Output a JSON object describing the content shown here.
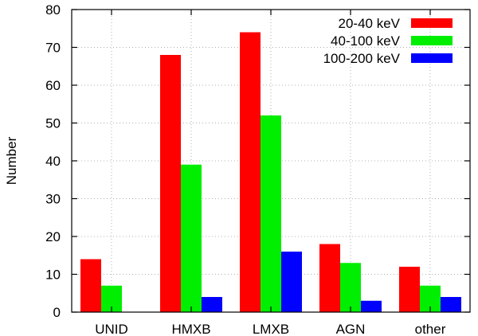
{
  "chart_data": {
    "type": "bar",
    "title": "",
    "xlabel": "",
    "ylabel": "Number",
    "ylim": [
      0,
      80
    ],
    "yticks": [
      0,
      10,
      20,
      30,
      40,
      50,
      60,
      70,
      80
    ],
    "grid": true,
    "legend_position": "top-right",
    "categories": [
      "UNID",
      "HMXB",
      "LMXB",
      "AGN",
      "other"
    ],
    "series": [
      {
        "name": "20-40 keV",
        "color": "#ff0000",
        "values": [
          14,
          68,
          74,
          18,
          12
        ]
      },
      {
        "name": "40-100 keV",
        "color": "#00ee00",
        "values": [
          7,
          39,
          52,
          13,
          7
        ]
      },
      {
        "name": "100-200 keV",
        "color": "#0000ff",
        "values": [
          0,
          4,
          16,
          3,
          4
        ]
      }
    ]
  }
}
